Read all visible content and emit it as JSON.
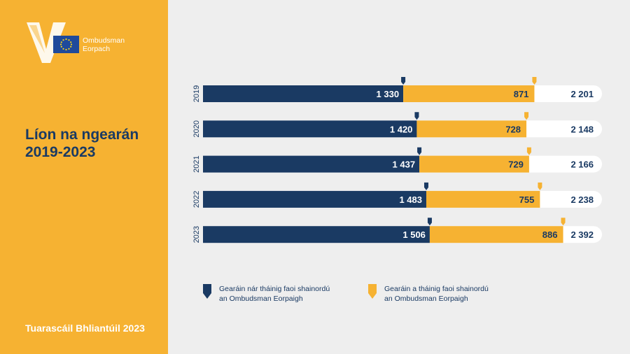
{
  "logo": {
    "line1": "Ombudsman",
    "line2": "Eorpach"
  },
  "title": {
    "line1": "Líon na ngearán",
    "line2": "2019-2023"
  },
  "footer": "Tuarascáil Bhliantúil 2023",
  "legend": {
    "outside": {
      "line1": "Gearáin nár tháinig faoi shainordú",
      "line2": "an Ombudsman Eorpaigh"
    },
    "inside": {
      "line1": "Gearáin a tháinig faoi shainordú",
      "line2": "an Ombudsman Eorpaigh"
    }
  },
  "colors": {
    "navy": "#1a3a63",
    "yellow": "#f6b232",
    "white": "#ffffff"
  },
  "chart_data": {
    "type": "bar",
    "orientation": "horizontal",
    "stacked": true,
    "categories": [
      "2019",
      "2020",
      "2021",
      "2022",
      "2023"
    ],
    "series": [
      {
        "name": "Gearáin nár tháinig faoi shainordú an Ombudsman Eorpaigh",
        "values": [
          1330,
          1420,
          1437,
          1483,
          1506
        ],
        "labels": [
          "1 330",
          "1 420",
          "1 437",
          "1 483",
          "1 506"
        ]
      },
      {
        "name": "Gearáin a tháinig faoi shainordú an Ombudsman Eorpaigh",
        "values": [
          871,
          728,
          729,
          755,
          886
        ],
        "labels": [
          "871",
          "728",
          "729",
          "755",
          "886"
        ]
      }
    ],
    "totals": [
      2201,
      2148,
      2166,
      2238,
      2392
    ],
    "total_labels": [
      "2 201",
      "2 148",
      "2 166",
      "2 238",
      "2 392"
    ],
    "xlim": [
      0,
      2650
    ]
  }
}
